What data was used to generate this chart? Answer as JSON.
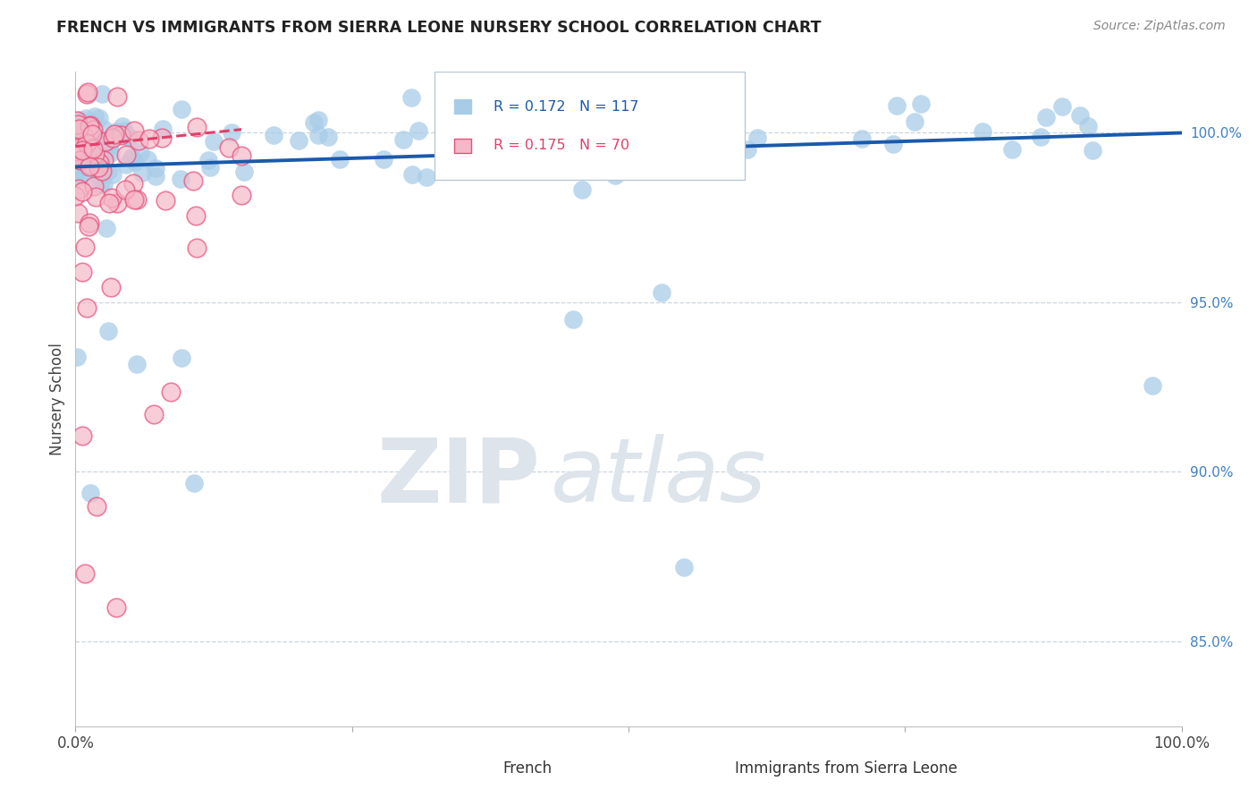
{
  "title": "FRENCH VS IMMIGRANTS FROM SIERRA LEONE NURSERY SCHOOL CORRELATION CHART",
  "source": "Source: ZipAtlas.com",
  "ylabel": "Nursery School",
  "right_ytick_values": [
    85.0,
    90.0,
    95.0,
    100.0
  ],
  "right_ytick_labels": [
    "85.0%",
    "90.0%",
    "95.0%",
    "100.0%"
  ],
  "legend_blue_label": "French",
  "legend_pink_label": "Immigrants from Sierra Leone",
  "R_blue": 0.172,
  "N_blue": 117,
  "R_pink": 0.175,
  "N_pink": 70,
  "blue_scatter_color": "#a8cce8",
  "blue_line_color": "#1a5aab",
  "pink_scatter_color": "#f4b8c8",
  "pink_scatter_edge": "#e8507a",
  "pink_line_color": "#e0406a",
  "background_color": "#ffffff",
  "grid_color": "#c8d4e0",
  "title_color": "#222222",
  "source_color": "#888888",
  "ylabel_color": "#444444",
  "right_tick_color": "#4080c0",
  "xlim": [
    0,
    100
  ],
  "ylim": [
    82.5,
    101.8
  ],
  "blue_trend_x": [
    0,
    100
  ],
  "blue_trend_y": [
    99.0,
    100.0
  ],
  "pink_trend_x": [
    0,
    15
  ],
  "pink_trend_y": [
    99.6,
    100.1
  ],
  "watermark_text": "ZIPatlas",
  "watermark_color": "#dde4ec"
}
